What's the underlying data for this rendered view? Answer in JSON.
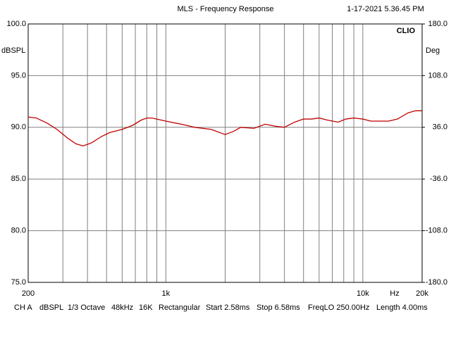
{
  "chart_data": {
    "type": "line",
    "title": "MLS - Frequency Response",
    "timestamp": "1-17-2021 5.36.45 PM",
    "brand": "CLIO",
    "ylabel": "dBSPL",
    "y2label": "Deg",
    "xunit": "Hz",
    "log_x": true,
    "grid": true,
    "xlim": [
      200,
      20000
    ],
    "xticks": [
      200,
      {
        "value": 1000,
        "label": "1k"
      },
      {
        "value": 10000,
        "label": "10k"
      },
      {
        "value": 20000,
        "label": "20k"
      }
    ],
    "xminor": [
      300,
      400,
      500,
      600,
      700,
      800,
      900,
      2000,
      3000,
      4000,
      5000,
      6000,
      7000,
      8000,
      9000
    ],
    "ylim": [
      75,
      100
    ],
    "yticks": [
      {
        "value": 75,
        "label": "75.0"
      },
      {
        "value": 80,
        "label": "80.0"
      },
      {
        "value": 85,
        "label": "85.0"
      },
      {
        "value": 90,
        "label": "90.0"
      },
      {
        "value": 95,
        "label": "95.0"
      },
      {
        "value": 100,
        "label": "100.0"
      }
    ],
    "y2lim": [
      -180,
      180
    ],
    "y2ticks": [
      {
        "value": -180,
        "label": "-180.0"
      },
      {
        "value": -108,
        "label": "-108.0"
      },
      {
        "value": -36,
        "label": "-36.0"
      },
      {
        "value": 36,
        "label": "36.0"
      },
      {
        "value": 108,
        "label": "108.0"
      },
      {
        "value": 180,
        "label": "180.0"
      }
    ],
    "x": [
      200,
      220,
      250,
      280,
      320,
      350,
      380,
      420,
      470,
      520,
      600,
      680,
      750,
      800,
      850,
      1000,
      1200,
      1400,
      1700,
      2000,
      2200,
      2400,
      2800,
      3200,
      3600,
      4000,
      4500,
      5000,
      5500,
      6000,
      6600,
      7500,
      8200,
      9000,
      10000,
      11000,
      12000,
      13500,
      15000,
      17000,
      18500,
      20000
    ],
    "series": [
      {
        "color": "#c00000",
        "values": [
          91.0,
          90.9,
          90.4,
          89.8,
          88.9,
          88.4,
          88.2,
          88.5,
          89.1,
          89.5,
          89.8,
          90.2,
          90.7,
          90.9,
          90.9,
          90.6,
          90.3,
          90.0,
          89.8,
          89.3,
          89.6,
          90.0,
          89.9,
          90.3,
          90.1,
          90.0,
          90.5,
          90.8,
          90.8,
          90.9,
          90.7,
          90.5,
          90.8,
          90.9,
          90.8,
          90.6,
          90.6,
          90.6,
          90.8,
          91.4,
          91.6,
          91.6
        ]
      }
    ],
    "footer": [
      "CH A",
      "dBSPL",
      "1/3 Octave",
      "48kHz",
      "16K",
      "Rectangular",
      "Start 2.58ms",
      "Stop 6.58ms",
      "FreqLO 250.00Hz",
      "Length 4.00ms"
    ]
  }
}
